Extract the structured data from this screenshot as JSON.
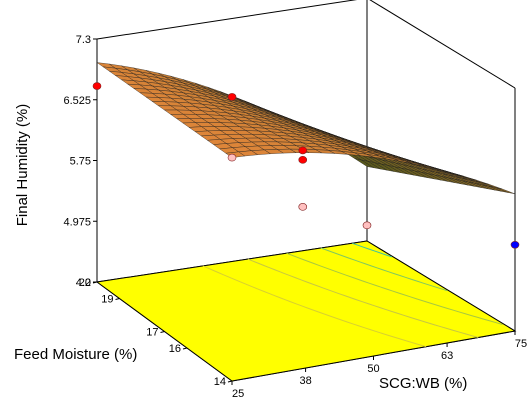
{
  "chart_data": {
    "type": "surface3d",
    "zlabel": "Final Humidity (%)",
    "ylabel": "Feed Moisture (%)",
    "xlabel": "SCG:WB (%)",
    "z_ticks": [
      "7.3",
      "6.525",
      "5.75",
      "4.975",
      "4.2"
    ],
    "z_tick_values": [
      7.3,
      6.525,
      5.75,
      4.975,
      4.2
    ],
    "y_ticks": [
      "20",
      "19",
      "17",
      "16",
      "14"
    ],
    "x_ticks": [
      "25",
      "38",
      "50",
      "63",
      "75"
    ],
    "zlim": [
      4.2,
      7.3
    ],
    "xlim": [
      25,
      75
    ],
    "ylim": [
      14,
      20
    ],
    "floor_color": "#ffff00",
    "surface_low_color": "#e2873a",
    "surface_high_color": "#0b3d0b",
    "design_points": [
      {
        "x": 25,
        "y": 20,
        "z": 6.7,
        "color": "#ff0000"
      },
      {
        "x": 25,
        "y": 14,
        "z": 7.05,
        "color": "#ffc0c0"
      },
      {
        "x": 50,
        "y": 20,
        "z": 6.3,
        "color": "#ff0000"
      },
      {
        "x": 50,
        "y": 17,
        "z": 6.22,
        "color": "#ff0000"
      },
      {
        "x": 50,
        "y": 17,
        "z": 6.1,
        "color": "#ff0000"
      },
      {
        "x": 50,
        "y": 17,
        "z": 5.5,
        "color": "#ffc0c0"
      },
      {
        "x": 75,
        "y": 14,
        "z": 5.3,
        "color": "#0000ff"
      },
      {
        "x": 75,
        "y": 20,
        "z": 4.4,
        "color": "#ffc0c0"
      }
    ]
  }
}
